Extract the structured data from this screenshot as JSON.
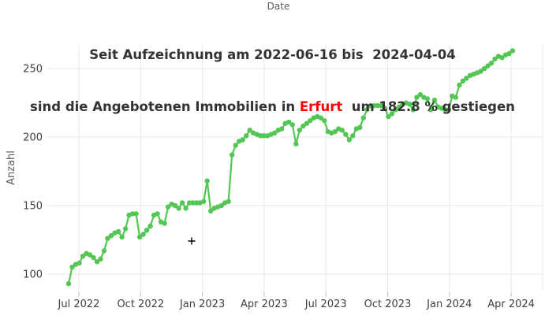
{
  "chart_data": {
    "type": "line",
    "top_axis_title": "Date",
    "title_line1": "Seit Aufzeichnung am 2022-06-16 bis  2024-04-04",
    "title_line2_prefix": "sind die Angebotenen Immobilien in ",
    "title_line2_city": "Erfurt",
    "title_line2_suffix": "  um 182.8 % gestiegen",
    "ylabel": "Anzahl",
    "date_start": "2022-06-16",
    "date_end": "2024-04-04",
    "percent_increase": "182.8 %",
    "x_tick_labels": [
      "Jul 2022",
      "Oct 2022",
      "Jan 2023",
      "Apr 2023",
      "Jul 2023",
      "Oct 2023",
      "Jan 2024",
      "Apr 2024"
    ],
    "y_tick_labels": [
      100,
      150,
      200,
      250
    ],
    "ylim": [
      87,
      267
    ],
    "grid": true,
    "legend_position": "none",
    "line_color": "#53c653",
    "grid_color": "#e9e9e9",
    "tick_label_color": "#3f3f3f",
    "series": [
      {
        "name": "Anzahl",
        "marker": "circle",
        "values": [
          93,
          105,
          107,
          108,
          113,
          115,
          114,
          112,
          109,
          111,
          117,
          126,
          128,
          130,
          131,
          127,
          133,
          143,
          144,
          144,
          127,
          129,
          132,
          135,
          143,
          144,
          138,
          137,
          149,
          151,
          150,
          148,
          152,
          148,
          152,
          152,
          152,
          152,
          153,
          168,
          146,
          148,
          149,
          150,
          152,
          153,
          187,
          194,
          197,
          198,
          201,
          205,
          203,
          202,
          201,
          201,
          201,
          202,
          203,
          205,
          206,
          210,
          211,
          209,
          195,
          205,
          208,
          210,
          212,
          214,
          215,
          214,
          212,
          204,
          203,
          204,
          206,
          205,
          202,
          198,
          201,
          206,
          207,
          214,
          220,
          223,
          223,
          223,
          223,
          221,
          215,
          217,
          220,
          222,
          224,
          225,
          224,
          220,
          229,
          231,
          229,
          228,
          220,
          227,
          222,
          221,
          220,
          220,
          230,
          229,
          238,
          241,
          243,
          245,
          246,
          247,
          248,
          250,
          252,
          254,
          257,
          259,
          258,
          260,
          261,
          263
        ]
      }
    ]
  },
  "cursor": {
    "icon": "plus-crosshair"
  }
}
